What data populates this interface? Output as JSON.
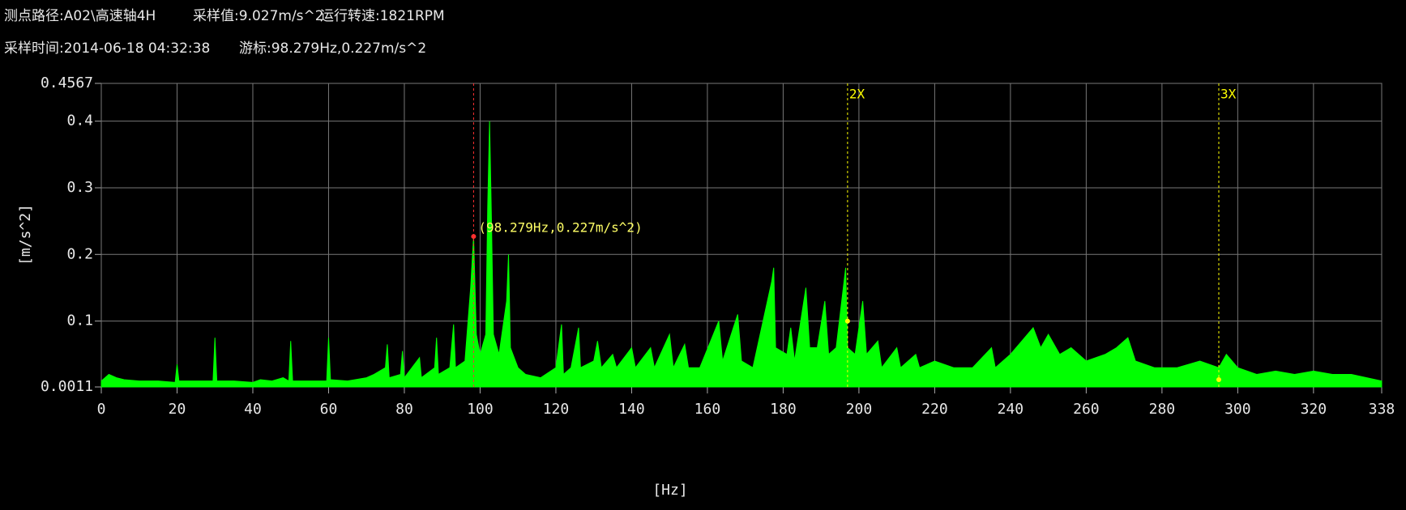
{
  "header": {
    "path": "测点路径:A02\\高速轴4H",
    "sample_value": "采样值:9.027m/s^2",
    "speed": "运行转速:1821RPM",
    "time": "采样时间:2014-06-18 04:32:38",
    "cursor": "游标:98.279Hz,0.227m/s^2"
  },
  "chart_data": {
    "type": "area",
    "xlabel": "[Hz]",
    "ylabel": "[m/s^2]",
    "color": "#00ff00",
    "grid": true,
    "xlim": [
      0,
      338
    ],
    "xticks": [
      0,
      20,
      40,
      60,
      80,
      100,
      120,
      140,
      160,
      180,
      200,
      220,
      240,
      260,
      280,
      300,
      320,
      338
    ],
    "ylim": [
      0.0011,
      0.4567
    ],
    "yticks": [
      0.0011,
      0.1,
      0.2,
      0.3,
      0.4,
      0.4567
    ],
    "x": [
      0,
      2,
      4,
      6,
      10,
      15,
      19.5,
      20,
      20.5,
      25,
      29.5,
      30,
      30.5,
      35,
      40,
      42,
      45,
      48,
      49.5,
      50,
      50.5,
      55,
      59.5,
      60,
      60.5,
      65,
      70,
      72,
      75,
      75.5,
      76,
      79,
      79.5,
      80,
      84,
      84.5,
      88,
      88.5,
      89,
      92,
      93,
      93.5,
      96,
      97.5,
      98.279,
      99,
      100,
      101.5,
      102,
      102.5,
      103,
      103.5,
      105,
      107,
      107.5,
      108,
      110,
      112,
      116,
      120,
      121.5,
      122,
      124,
      126,
      126.5,
      130,
      131,
      132,
      135,
      136,
      140,
      141,
      145,
      146,
      150,
      151,
      154,
      155,
      158,
      163,
      164,
      168,
      169,
      172,
      177,
      177.5,
      178,
      181,
      182,
      183,
      186,
      187,
      189,
      191,
      192,
      194,
      196.5,
      197,
      199,
      201,
      202,
      205,
      206,
      210,
      211,
      215,
      216,
      220,
      225,
      230,
      235,
      236,
      240,
      243,
      246,
      248,
      250,
      253,
      256,
      260,
      265,
      268,
      271,
      273,
      278,
      284,
      290,
      295,
      297,
      300,
      305,
      310,
      315,
      320,
      325,
      330,
      338
    ],
    "values": [
      0.01,
      0.02,
      0.015,
      0.012,
      0.01,
      0.01,
      0.008,
      0.035,
      0.01,
      0.01,
      0.01,
      0.075,
      0.01,
      0.01,
      0.008,
      0.012,
      0.01,
      0.015,
      0.01,
      0.07,
      0.01,
      0.01,
      0.01,
      0.075,
      0.012,
      0.01,
      0.015,
      0.02,
      0.03,
      0.065,
      0.015,
      0.02,
      0.055,
      0.015,
      0.045,
      0.015,
      0.03,
      0.075,
      0.02,
      0.03,
      0.095,
      0.03,
      0.04,
      0.15,
      0.227,
      0.08,
      0.05,
      0.08,
      0.27,
      0.4,
      0.25,
      0.08,
      0.05,
      0.13,
      0.2,
      0.06,
      0.03,
      0.02,
      0.015,
      0.03,
      0.095,
      0.02,
      0.03,
      0.09,
      0.03,
      0.04,
      0.07,
      0.03,
      0.05,
      0.03,
      0.06,
      0.03,
      0.06,
      0.03,
      0.08,
      0.03,
      0.065,
      0.03,
      0.03,
      0.1,
      0.04,
      0.11,
      0.04,
      0.03,
      0.16,
      0.18,
      0.06,
      0.05,
      0.09,
      0.04,
      0.15,
      0.06,
      0.06,
      0.13,
      0.05,
      0.06,
      0.18,
      0.06,
      0.05,
      0.13,
      0.05,
      0.07,
      0.03,
      0.06,
      0.03,
      0.05,
      0.03,
      0.04,
      0.03,
      0.03,
      0.06,
      0.03,
      0.05,
      0.07,
      0.09,
      0.06,
      0.08,
      0.05,
      0.06,
      0.04,
      0.05,
      0.06,
      0.075,
      0.04,
      0.03,
      0.03,
      0.04,
      0.03,
      0.05,
      0.03,
      0.02,
      0.025,
      0.02,
      0.025,
      0.02,
      0.02,
      0.01
    ],
    "cursor": {
      "x": 98.279,
      "y": 0.227,
      "label": "(98.279Hz,0.227m/s^2)"
    },
    "harmonics": [
      {
        "label": "2X",
        "x": 197,
        "y": 0.1
      },
      {
        "label": "3X",
        "x": 295,
        "y": 0.012
      }
    ]
  }
}
